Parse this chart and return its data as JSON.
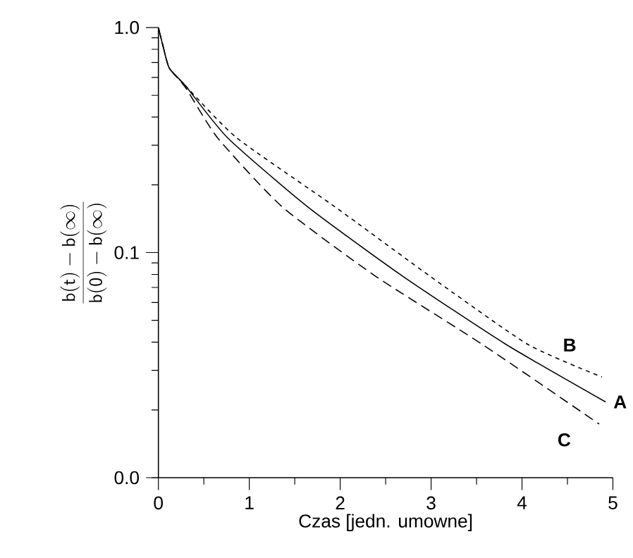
{
  "chart_data": {
    "type": "line",
    "xlabel": "Czas [jedn. umowne]",
    "ylabel": "\\frac{\\mathsf{b(t) - b(\\infty)}}{\\mathsf{b(0) - b(\\infty)}}",
    "log": "y",
    "xlim": [
      0,
      5
    ],
    "ylim": [
      0.01,
      1
    ],
    "xticks": [
      0,
      1,
      2,
      3,
      4,
      5
    ],
    "yticks": [
      {
        "value": 0.01,
        "label": "0.0"
      },
      {
        "value": 0.1,
        "label": "0.1"
      },
      {
        "value": 1,
        "label": "1.0"
      }
    ],
    "grid": false,
    "legend": false,
    "marker": "none",
    "series": [
      {
        "name": "A",
        "color": "#000000",
        "line_style": "solid",
        "x": [
          0,
          0.05,
          0.12,
          0.3,
          0.76,
          1.64,
          2.68,
          3.82,
          4.92
        ],
        "values": [
          1,
          0.83,
          0.66,
          0.55,
          0.324,
          0.16,
          0.079,
          0.0392,
          0.0217
        ]
      },
      {
        "name": "B",
        "color": "#000000",
        "line_style": "dotted",
        "x": [
          0,
          0.05,
          0.12,
          0.3,
          0.86,
          1.94,
          2.98,
          4.06,
          4.88
        ],
        "values": [
          1,
          0.83,
          0.66,
          0.55,
          0.324,
          0.16,
          0.079,
          0.0392,
          0.028
        ]
      },
      {
        "name": "C",
        "color": "#000000",
        "line_style": "dashed",
        "x": [
          0,
          0.05,
          0.12,
          0.3,
          0.65,
          1.36,
          2.38,
          3.56,
          4.85
        ],
        "values": [
          1,
          0.83,
          0.66,
          0.54,
          0.324,
          0.16,
          0.079,
          0.0392,
          0.0173
        ]
      }
    ]
  }
}
